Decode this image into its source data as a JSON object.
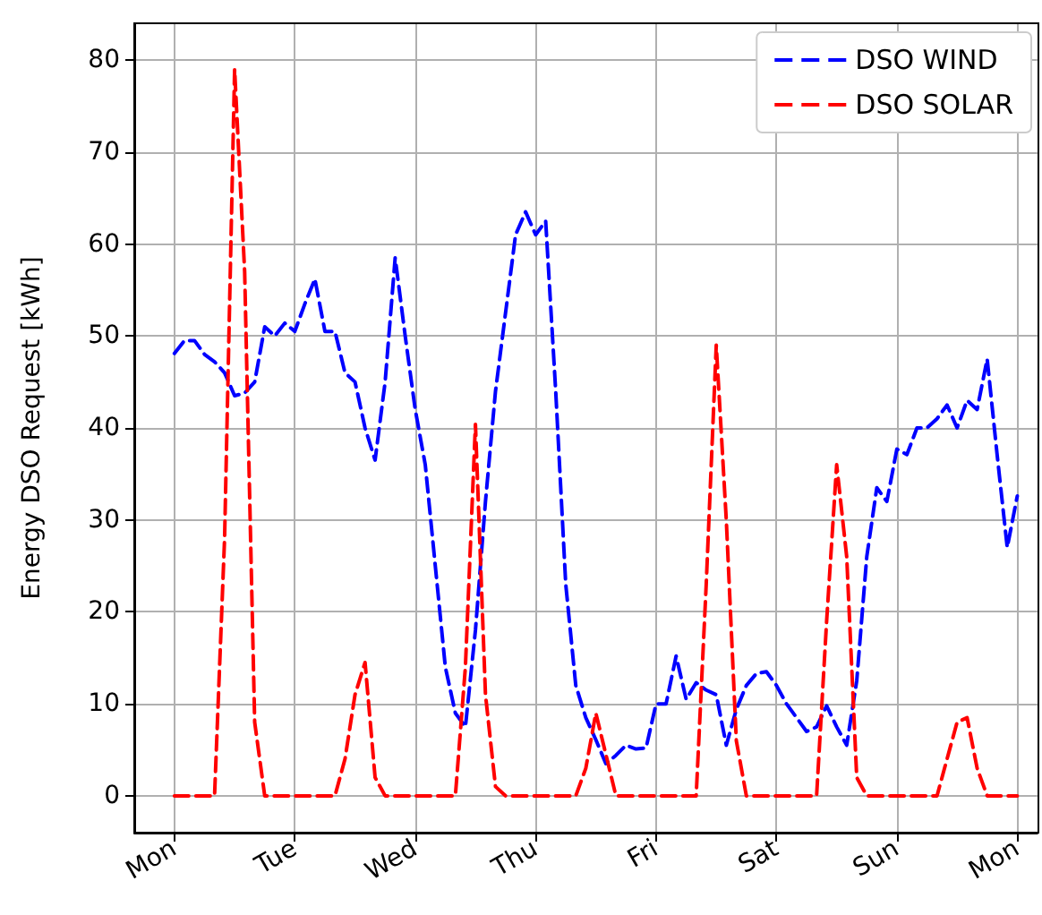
{
  "chart_data": {
    "type": "line",
    "ylabel": "Energy DSO Request [kWh]",
    "categories": [
      null,
      null,
      null,
      null,
      "Mon",
      null,
      null,
      null,
      null,
      null,
      null,
      null,
      null,
      null,
      null,
      null,
      "Tue",
      null,
      null,
      null,
      null,
      null,
      null,
      null,
      null,
      null,
      null,
      null,
      "Wed",
      null,
      null,
      null,
      null,
      null,
      null,
      null,
      null,
      null,
      null,
      null,
      "Thu",
      null,
      null,
      null,
      null,
      null,
      null,
      null,
      null,
      null,
      null,
      null,
      "Fri",
      null,
      null,
      null,
      null,
      null,
      null,
      null,
      null,
      null,
      null,
      null,
      "Sat",
      null,
      null,
      null,
      null,
      null,
      null,
      null,
      null,
      null,
      null,
      null,
      "Sun",
      null,
      null,
      null,
      null,
      null,
      null,
      null,
      null,
      null,
      null,
      null,
      "Mon",
      null,
      null
    ],
    "ylim": [
      -4,
      84
    ],
    "yticks": [
      0,
      10,
      20,
      30,
      40,
      50,
      60,
      70,
      80
    ],
    "grid": true,
    "legend": "top right",
    "marker": "none",
    "line_style": "dashed",
    "series": [
      {
        "name": "DSO WIND",
        "color": "#0000ff",
        "values": [
          null,
          null,
          null,
          null,
          48.1,
          49.5,
          49.5,
          48,
          47.2,
          46,
          43.5,
          43.8,
          45,
          51,
          50,
          51.4,
          50.5,
          53.5,
          56.2,
          50.5,
          50.5,
          46,
          45,
          40,
          36.5,
          45,
          58.5,
          50,
          42,
          36,
          25,
          14,
          9,
          7.5,
          18,
          32,
          44,
          52.5,
          61,
          63.5,
          61,
          62.5,
          44,
          23,
          12,
          8.5,
          6.1,
          3.5,
          4.4,
          5.5,
          5.1,
          5.2,
          10,
          10,
          15.2,
          10.5,
          12.3,
          11.5,
          11,
          5.5,
          9.4,
          12,
          13.3,
          13.5,
          12,
          10,
          8.5,
          7,
          7.5,
          9.8,
          7.5,
          5.5,
          12.5,
          26,
          33.5,
          32,
          37.7,
          37.1,
          40,
          40,
          41,
          42.5,
          40,
          43,
          42,
          47.5,
          37,
          27,
          32.6,
          null,
          null
        ]
      },
      {
        "name": "DSO SOLAR",
        "color": "#ff0000",
        "values": [
          null,
          null,
          null,
          null,
          0,
          0,
          0,
          0,
          0,
          28,
          79,
          57,
          8,
          0,
          0,
          0,
          0,
          0,
          0,
          0,
          0,
          4,
          11,
          14.5,
          2,
          0,
          0,
          0,
          0,
          0,
          0,
          0,
          0,
          14,
          40.4,
          11,
          1,
          0,
          0,
          0,
          0,
          0,
          0,
          0,
          0,
          3,
          9,
          4.5,
          0,
          0,
          0,
          0,
          0,
          0,
          0,
          0,
          0,
          23,
          49,
          30,
          6,
          0,
          0,
          0,
          0,
          0,
          0,
          0,
          0,
          19,
          36,
          26,
          2,
          0,
          0,
          0,
          0,
          0,
          0,
          0,
          0,
          4,
          8,
          8.5,
          3,
          0,
          0,
          0,
          0,
          null,
          null
        ]
      }
    ]
  }
}
